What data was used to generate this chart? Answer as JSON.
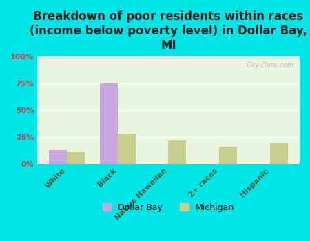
{
  "title": "Breakdown of poor residents within races\n(income below poverty level) in Dollar Bay,\nMI",
  "categories": [
    "White",
    "Black",
    "Native Hawaiian",
    "2+ races",
    "Hispanic"
  ],
  "dollar_bay_values": [
    13,
    75,
    0,
    0,
    0
  ],
  "michigan_values": [
    11,
    28,
    22,
    16,
    19
  ],
  "dollar_bay_color": "#c9a8e0",
  "michigan_color": "#c8cf8e",
  "background_color": "#00e5e5",
  "plot_bg_color": "#eaf5e0",
  "yticks": [
    0,
    25,
    50,
    75,
    100
  ],
  "ytick_labels": [
    "0%",
    "25%",
    "50%",
    "75%",
    "100%"
  ],
  "ylim": [
    0,
    100
  ],
  "bar_width": 0.35,
  "title_fontsize": 12,
  "tick_label_fontsize": 8,
  "axis_label_color": "#cc4444",
  "watermark": "City-Data.com",
  "legend_dollar_bay": "Dollar Bay",
  "legend_michigan": "Michigan"
}
